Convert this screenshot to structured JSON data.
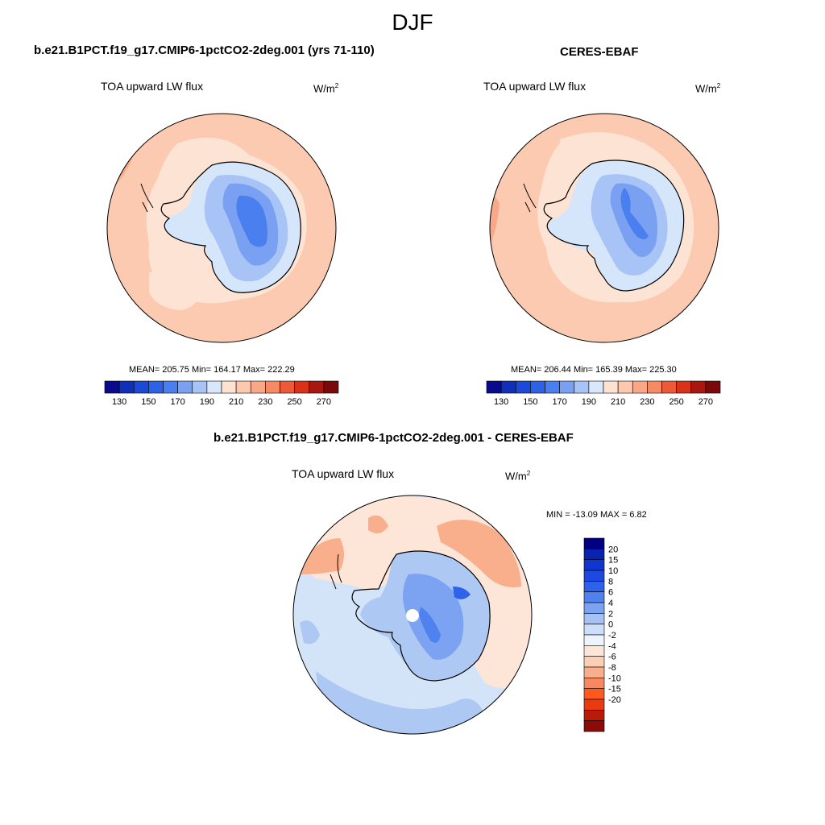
{
  "figure": {
    "title": "DJF"
  },
  "panels": [
    {
      "id": "model",
      "title": "b.e21.B1PCT.f19_g17.CMIP6-1pctCO2-2deg.001 (yrs 71-110)",
      "left_label": "TOA upward LW flux",
      "units_base": "W/m",
      "units_exp": "2",
      "stats": "MEAN= 205.75  Min= 164.17  Max= 222.29"
    },
    {
      "id": "obs",
      "title": "CERES-EBAF",
      "left_label": "TOA upward LW flux",
      "units_base": "W/m",
      "units_exp": "2",
      "stats": "MEAN= 206.44  Min= 165.39  Max= 225.30"
    },
    {
      "id": "diff",
      "title": "b.e21.B1PCT.f19_g17.CMIP6-1pctCO2-2deg.001 - CERES-EBAF",
      "left_label": "TOA upward LW flux",
      "units_base": "W/m",
      "units_exp": "2",
      "stats": "MIN = -13.09 MAX =   6.82"
    }
  ],
  "colorbars": {
    "absolute": {
      "colors": [
        "#0a0a8c",
        "#1030b8",
        "#1c4ad6",
        "#2d62e6",
        "#4a7ff0",
        "#7aa0f2",
        "#a8c4f6",
        "#d8e8fa",
        "#fde2d2",
        "#fcc8ae",
        "#f9a887",
        "#f58a64",
        "#ec5a38",
        "#d8321a",
        "#a81810",
        "#7a0a0a"
      ],
      "labels": [
        "130",
        "150",
        "170",
        "190",
        "210",
        "230",
        "250",
        "270"
      ]
    },
    "difference": {
      "colors": [
        "#000080",
        "#0a22b0",
        "#1035d0",
        "#1c4ae0",
        "#2e62ea",
        "#4f82ef",
        "#7ca2f2",
        "#a6c2f5",
        "#ccdef8",
        "#eef4fc",
        "#fde6d8",
        "#fbcfb5",
        "#f9ae8c",
        "#f88860",
        "#ff5a1e",
        "#e83c10",
        "#b81c08",
        "#8c0a08"
      ],
      "labels": [
        "20",
        "15",
        "10",
        "8",
        "6",
        "4",
        "2",
        "0",
        "-2",
        "-4",
        "-6",
        "-8",
        "-10",
        "-15",
        "-20"
      ]
    }
  },
  "map_colors": {
    "ocean_warm": "#fbcab0",
    "ocean_light": "#fde3d3",
    "ocean_deep": "#f7a989",
    "ice_1": "#d6e6fa",
    "ice_2": "#a8c4f6",
    "ice_3": "#7aa0f2",
    "ice_4": "#4a7ff0",
    "diff_neg1": "#d4e4f8",
    "diff_neg2": "#aec8f4",
    "diff_pos1": "#fde6d8",
    "diff_pos2": "#f9ae8c"
  }
}
